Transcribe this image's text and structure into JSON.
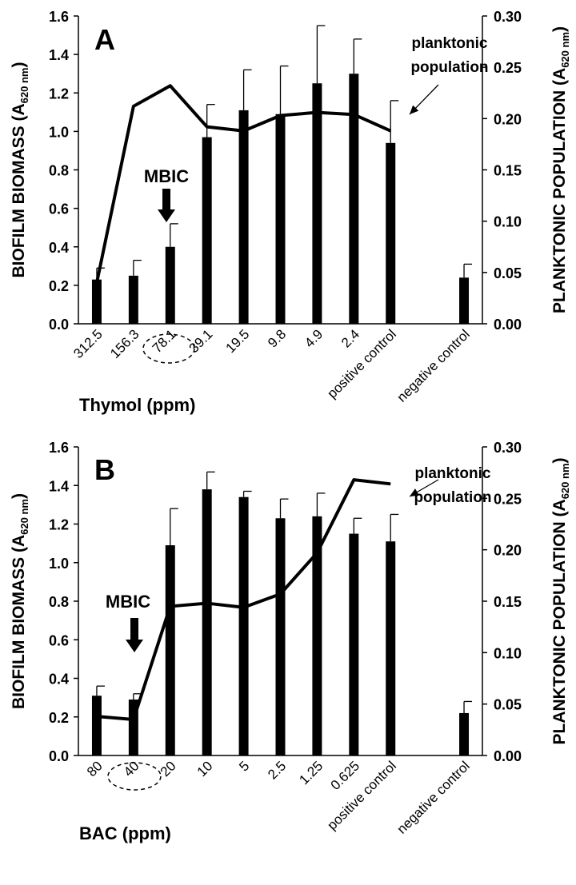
{
  "chart_data": [
    {
      "panel": "A",
      "type": "bar",
      "xlabel": "Thymol (ppm)",
      "ylabel": "BIOFILM BIOMASS (A620 nm)",
      "ylabel_main": "BIOFILM BIOMASS (A",
      "ylabel_sub": "620 nm",
      "ylabel_close": ")",
      "y2label": "PLANKTONIC POPULATION (A620 nm)",
      "y2label_main": "PLANKTONIC POPULATION (A",
      "y2label_sub": "620 nm",
      "y2label_close": ")",
      "ylim": [
        0,
        1.6
      ],
      "yticks": [
        "0.0",
        "0.2",
        "0.4",
        "0.6",
        "0.8",
        "1.0",
        "1.2",
        "1.4",
        "1.6"
      ],
      "y2lim": [
        0,
        0.3
      ],
      "y2ticks": [
        "0.00",
        "0.05",
        "0.10",
        "0.15",
        "0.20",
        "0.25",
        "0.30"
      ],
      "categories": [
        "312.5",
        "156.3",
        "78.1",
        "39.1",
        "19.5",
        "9.8",
        "4.9",
        "2.4",
        "positive control",
        "",
        "negative control"
      ],
      "series": [
        {
          "axis": "left",
          "kind": "bar",
          "values": [
            0.23,
            0.25,
            0.4,
            0.97,
            1.11,
            1.09,
            1.25,
            1.3,
            0.94,
            null,
            0.24
          ],
          "errors": [
            0.06,
            0.08,
            0.12,
            0.17,
            0.21,
            0.25,
            0.3,
            0.18,
            0.22,
            null,
            0.07
          ]
        },
        {
          "axis": "right",
          "kind": "line",
          "name": "planktonic population",
          "values": [
            0.04,
            0.212,
            0.232,
            0.192,
            0.188,
            0.203,
            0.206,
            0.204,
            0.188,
            null,
            null
          ]
        }
      ],
      "annotations": {
        "mbic": "MBIC",
        "mbic_index": 2,
        "planktonic_label": [
          "planktonic",
          "population"
        ]
      },
      "grid": false
    },
    {
      "panel": "B",
      "type": "bar",
      "xlabel": "BAC (ppm)",
      "ylabel": "BIOFILM BIOMASS (A620 nm)",
      "ylabel_main": "BIOFILM BIOMASS (A",
      "ylabel_sub": "620 nm",
      "ylabel_close": ")",
      "y2label": "PLANKTONIC POPULATION (A620 nm)",
      "y2label_main": "PLANKTONIC POPULATION (A",
      "y2label_sub": "620 nm",
      "y2label_close": ")",
      "ylim": [
        0,
        1.6
      ],
      "yticks": [
        "0.0",
        "0.2",
        "0.4",
        "0.6",
        "0.8",
        "1.0",
        "1.2",
        "1.4",
        "1.6"
      ],
      "y2lim": [
        0,
        0.3
      ],
      "y2ticks": [
        "0.00",
        "0.05",
        "0.10",
        "0.15",
        "0.20",
        "0.25",
        "0.30"
      ],
      "categories": [
        "80",
        "40",
        "20",
        "10",
        "5",
        "2.5",
        "1.25",
        "0.625",
        "positive control",
        "",
        "negative control"
      ],
      "series": [
        {
          "axis": "left",
          "kind": "bar",
          "values": [
            0.31,
            0.29,
            1.09,
            1.38,
            1.34,
            1.23,
            1.24,
            1.15,
            1.11,
            null,
            0.22
          ],
          "errors": [
            0.05,
            0.03,
            0.19,
            0.09,
            0.03,
            0.1,
            0.12,
            0.08,
            0.14,
            null,
            0.06
          ]
        },
        {
          "axis": "right",
          "kind": "line",
          "name": "planktonic population",
          "values": [
            0.038,
            0.035,
            0.145,
            0.148,
            0.144,
            0.157,
            0.197,
            0.268,
            0.264,
            null,
            null
          ]
        }
      ],
      "annotations": {
        "mbic": "MBIC",
        "mbic_index": 1,
        "planktonic_label": [
          "planktonic",
          "population"
        ]
      },
      "grid": false
    }
  ]
}
